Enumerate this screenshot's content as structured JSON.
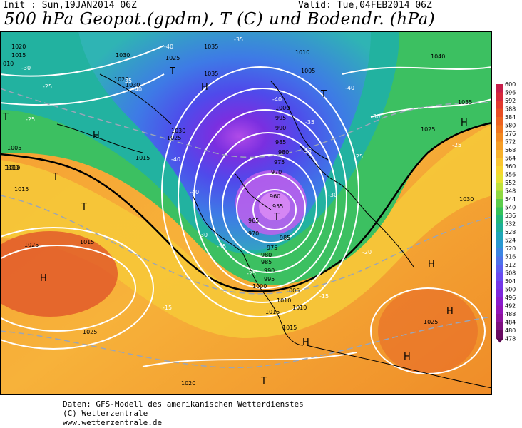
{
  "header": {
    "init_label": "Init : Sun,19JAN2014 06Z",
    "valid_label": "Valid: Tue,04FEB2014 06Z",
    "title": "500 hPa Geopot.(gpdm), T (C) und Bodendr. (hPa)"
  },
  "footer": {
    "line1": "Daten: GFS-Modell des amerikanischen Wetterdienstes",
    "line2": "(C) Wetterzentrale",
    "line3": "www.wetterzentrale.de"
  },
  "colorbar": {
    "labels": [
      "600",
      "596",
      "592",
      "588",
      "584",
      "580",
      "576",
      "572",
      "568",
      "564",
      "560",
      "556",
      "552",
      "548",
      "544",
      "540",
      "536",
      "532",
      "528",
      "524",
      "520",
      "516",
      "512",
      "508",
      "504",
      "500",
      "496",
      "492",
      "488",
      "484",
      "480",
      "478"
    ],
    "colors": [
      "#c71f4a",
      "#d62a3c",
      "#e23a2f",
      "#e84e24",
      "#ec6220",
      "#ef761f",
      "#f28a22",
      "#f59e27",
      "#f7b22c",
      "#f9c531",
      "#f8d62f",
      "#e6e234",
      "#bfe13b",
      "#8fd942",
      "#5ccd4c",
      "#36c35a",
      "#22b77a",
      "#1fae99",
      "#21a6b7",
      "#2b98d0",
      "#3d86e2",
      "#4f73ea",
      "#5d5ff0",
      "#6a4bf0",
      "#7437e8",
      "#7e28dc",
      "#8a1ccc",
      "#9216b8",
      "#8e139e",
      "#7d1080",
      "#690b62"
    ]
  },
  "map": {
    "pressure_labels": [
      "1020",
      "1015",
      "010",
      "1030",
      "1025",
      "1020",
      "1035",
      "1035",
      "1030",
      "1010",
      "1005",
      "1040",
      "1035",
      "1025",
      "1030",
      "1025",
      "1015",
      "1005",
      "1010",
      "1000",
      "995",
      "990",
      "985",
      "980",
      "975",
      "970",
      "960",
      "955",
      "965",
      "970",
      "985",
      "975",
      "980",
      "985",
      "990",
      "995",
      "1000",
      "1005",
      "1010",
      "1010",
      "1015",
      "1015",
      "1025",
      "1025",
      "1020",
      "1030",
      "1025",
      "1015",
      "1010",
      "1015"
    ],
    "temp_labels": [
      "-35",
      "-40",
      "-30",
      "-25",
      "-40",
      "-35",
      "-40",
      "-30",
      "-35",
      "-25",
      "-30",
      "-25",
      "-35",
      "-30",
      "-25",
      "-20",
      "-15",
      "-15",
      "-25",
      "-40",
      "-40",
      "-35",
      "-40"
    ],
    "centers": [
      "H",
      "T",
      "H",
      "T",
      "H",
      "T",
      "T",
      "T",
      "T",
      "H",
      "H",
      "H",
      "H",
      "T",
      "H"
    ]
  }
}
